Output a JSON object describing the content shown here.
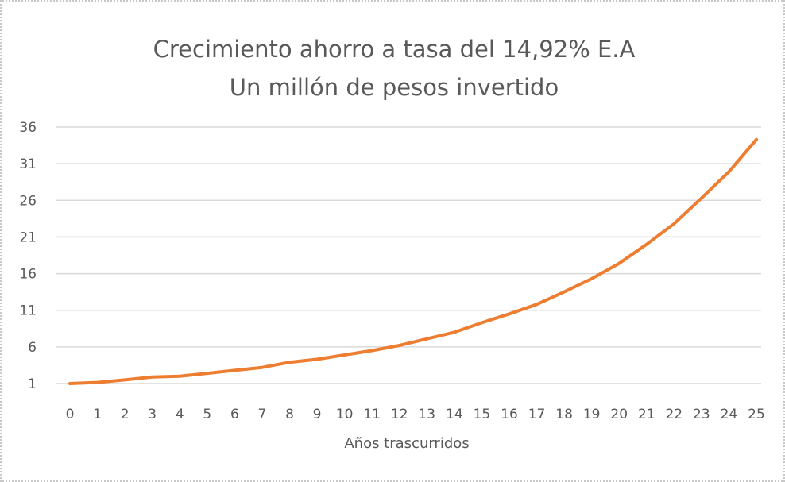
{
  "chart_data": {
    "type": "line",
    "title": "Crecimiento ahorro a tasa del 14,92% E.A",
    "subtitle": "Un millón de pesos invertido",
    "xlabel": "Años trascurridos",
    "ylabel": "",
    "x": [
      0,
      1,
      2,
      3,
      4,
      5,
      6,
      7,
      8,
      9,
      10,
      11,
      12,
      13,
      14,
      15,
      16,
      17,
      18,
      19,
      20,
      21,
      22,
      23,
      24,
      25
    ],
    "y_ticks": [
      1,
      6,
      11,
      16,
      21,
      26,
      31,
      36
    ],
    "ylim": [
      1,
      36
    ],
    "grid": true,
    "series": [
      {
        "values": [
          1.0,
          1.15,
          1.5,
          1.9,
          2.0,
          2.4,
          2.8,
          3.2,
          3.9,
          4.3,
          4.9,
          5.5,
          6.2,
          7.1,
          8.0,
          9.3,
          10.5,
          11.8,
          13.5,
          15.3,
          17.4,
          20.0,
          22.8,
          26.3,
          29.9,
          34.3
        ],
        "color": "#ED7D31"
      }
    ]
  }
}
